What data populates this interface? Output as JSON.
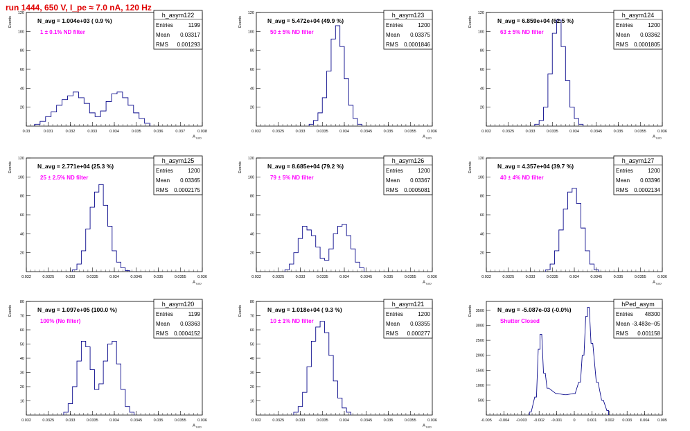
{
  "run_title": "run 1444,   650 V, I_pe ≈ 7.0 nA, 120 Hz",
  "colors": {
    "hist": "#0a0a8c",
    "filter_text": "#ff00ff",
    "title_text": "#e00000"
  },
  "chart_data": [
    {
      "type": "bar",
      "title": "h_asym122",
      "n_avg_label": "N_avg = 1.004e+03 ( 0.9 %)",
      "filter_label": "1 ± 0.1% ND filter",
      "stats": {
        "entries": "1199",
        "mean": "0.03317",
        "rms": "0.001293"
      },
      "ylabel": "Events",
      "xlabel": "A_LED",
      "xlim": [
        0.03,
        0.038
      ],
      "ylim": [
        0,
        120
      ],
      "xticks": [
        "0.03",
        "0.031",
        "0.032",
        "0.033",
        "0.034",
        "0.035",
        "0.036",
        "0.037",
        "0.038"
      ],
      "yticks": [
        "20",
        "40",
        "60",
        "80",
        "100",
        "120"
      ],
      "bins": [
        [
          0.0305,
          2
        ],
        [
          0.03075,
          5
        ],
        [
          0.031,
          10
        ],
        [
          0.03125,
          15
        ],
        [
          0.0315,
          22
        ],
        [
          0.03175,
          28
        ],
        [
          0.032,
          32
        ],
        [
          0.03225,
          36
        ],
        [
          0.0325,
          30
        ],
        [
          0.03275,
          24
        ],
        [
          0.033,
          14
        ],
        [
          0.03325,
          10
        ],
        [
          0.0335,
          16
        ],
        [
          0.03375,
          26
        ],
        [
          0.034,
          34
        ],
        [
          0.03425,
          36
        ],
        [
          0.0345,
          30
        ],
        [
          0.03475,
          22
        ],
        [
          0.035,
          14
        ],
        [
          0.03525,
          8
        ],
        [
          0.0355,
          3
        ]
      ]
    },
    {
      "type": "bar",
      "title": "h_asym123",
      "n_avg_label": "N_avg = 5.472e+04 (49.9 %)",
      "filter_label": "50 ± 5% ND filter",
      "stats": {
        "entries": "1200",
        "mean": "0.03375",
        "rms": "0.0001846"
      },
      "ylabel": "Events",
      "xlabel": "A_LED",
      "xlim": [
        0.032,
        0.036
      ],
      "ylim": [
        0,
        120
      ],
      "xticks": [
        "0.032",
        "0.0325",
        "0.033",
        "0.0335",
        "0.034",
        "0.0345",
        "0.035",
        "0.0355",
        "0.036"
      ],
      "yticks": [
        "20",
        "40",
        "60",
        "80",
        "100",
        "120"
      ],
      "bins": [
        [
          0.03325,
          2
        ],
        [
          0.03335,
          6
        ],
        [
          0.03345,
          14
        ],
        [
          0.03355,
          30
        ],
        [
          0.03365,
          58
        ],
        [
          0.03375,
          92
        ],
        [
          0.03385,
          106
        ],
        [
          0.03395,
          84
        ],
        [
          0.03405,
          50
        ],
        [
          0.03415,
          22
        ],
        [
          0.03425,
          8
        ],
        [
          0.03435,
          2
        ]
      ]
    },
    {
      "type": "bar",
      "title": "h_asym124",
      "n_avg_label": "N_avg = 6.859e+04 (62.5 %)",
      "filter_label": "63 ± 5% ND filter",
      "stats": {
        "entries": "1200",
        "mean": "0.03362",
        "rms": "0.0001805"
      },
      "ylabel": "Events",
      "xlabel": "A_LED",
      "xlim": [
        0.032,
        0.036
      ],
      "ylim": [
        0,
        120
      ],
      "xticks": [
        "0.032",
        "0.0325",
        "0.033",
        "0.0335",
        "0.034",
        "0.0345",
        "0.035",
        "0.0355",
        "0.036"
      ],
      "yticks": [
        "20",
        "40",
        "60",
        "80",
        "100",
        "120"
      ],
      "bins": [
        [
          0.03315,
          2
        ],
        [
          0.03325,
          6
        ],
        [
          0.03335,
          20
        ],
        [
          0.03345,
          55
        ],
        [
          0.03355,
          98
        ],
        [
          0.03365,
          112
        ],
        [
          0.03375,
          84
        ],
        [
          0.03385,
          48
        ],
        [
          0.03395,
          20
        ],
        [
          0.03405,
          8
        ],
        [
          0.03415,
          2
        ]
      ]
    },
    {
      "type": "bar",
      "title": "h_asym125",
      "n_avg_label": "N_avg = 2.771e+04 (25.3 %)",
      "filter_label": "25 ± 2.5% ND filter",
      "stats": {
        "entries": "1200",
        "mean": "0.03365",
        "rms": "0.0002175"
      },
      "ylabel": "Events",
      "xlabel": "A_LED",
      "xlim": [
        0.032,
        0.036
      ],
      "ylim": [
        0,
        120
      ],
      "xticks": [
        "0.032",
        "0.0325",
        "0.033",
        "0.0335",
        "0.034",
        "0.0345",
        "0.035",
        "0.0355",
        "0.036"
      ],
      "yticks": [
        "20",
        "40",
        "60",
        "80",
        "100",
        "120"
      ],
      "bins": [
        [
          0.0331,
          2
        ],
        [
          0.0332,
          8
        ],
        [
          0.0333,
          22
        ],
        [
          0.0334,
          45
        ],
        [
          0.0335,
          68
        ],
        [
          0.0336,
          84
        ],
        [
          0.0337,
          92
        ],
        [
          0.0338,
          70
        ],
        [
          0.0339,
          48
        ],
        [
          0.034,
          22
        ],
        [
          0.0341,
          10
        ],
        [
          0.0342,
          4
        ],
        [
          0.0343,
          1
        ]
      ]
    },
    {
      "type": "bar",
      "title": "h_asym126",
      "n_avg_label": "N_avg = 8.685e+04 (79.2 %)",
      "filter_label": "79 ± 5% ND filter",
      "stats": {
        "entries": "1200",
        "mean": "0.03367",
        "rms": "0.0005081"
      },
      "ylabel": "Events",
      "xlabel": "A_LED",
      "xlim": [
        0.032,
        0.036
      ],
      "ylim": [
        0,
        120
      ],
      "xticks": [
        "0.032",
        "0.0325",
        "0.033",
        "0.0335",
        "0.034",
        "0.0345",
        "0.035",
        "0.0355",
        "0.036"
      ],
      "yticks": [
        "20",
        "40",
        "60",
        "80",
        "100",
        "120"
      ],
      "bins": [
        [
          0.0327,
          2
        ],
        [
          0.0328,
          8
        ],
        [
          0.0329,
          20
        ],
        [
          0.033,
          35
        ],
        [
          0.0331,
          48
        ],
        [
          0.0332,
          44
        ],
        [
          0.0333,
          38
        ],
        [
          0.0334,
          26
        ],
        [
          0.0335,
          14
        ],
        [
          0.0336,
          12
        ],
        [
          0.0337,
          24
        ],
        [
          0.0338,
          40
        ],
        [
          0.0339,
          48
        ],
        [
          0.034,
          50
        ],
        [
          0.0341,
          38
        ],
        [
          0.0342,
          24
        ],
        [
          0.0343,
          10
        ],
        [
          0.0344,
          4
        ]
      ]
    },
    {
      "type": "bar",
      "title": "h_asym127",
      "n_avg_label": "N_avg = 4.357e+04 (39.7 %)",
      "filter_label": "40 ± 4% ND filter",
      "stats": {
        "entries": "1200",
        "mean": "0.03396",
        "rms": "0.0002134"
      },
      "ylabel": "Events",
      "xlabel": "A_LED",
      "xlim": [
        0.032,
        0.036
      ],
      "ylim": [
        0,
        120
      ],
      "xticks": [
        "0.032",
        "0.0325",
        "0.033",
        "0.0335",
        "0.034",
        "0.0345",
        "0.035",
        "0.0355",
        "0.036"
      ],
      "yticks": [
        "20",
        "40",
        "60",
        "80",
        "100",
        "120"
      ],
      "bins": [
        [
          0.0334,
          2
        ],
        [
          0.0335,
          8
        ],
        [
          0.0336,
          22
        ],
        [
          0.0337,
          44
        ],
        [
          0.0338,
          66
        ],
        [
          0.0339,
          84
        ],
        [
          0.034,
          88
        ],
        [
          0.0341,
          72
        ],
        [
          0.0342,
          46
        ],
        [
          0.0343,
          22
        ],
        [
          0.0344,
          8
        ],
        [
          0.0345,
          2
        ]
      ]
    },
    {
      "type": "bar",
      "title": "h_asym120",
      "n_avg_label": "N_avg = 1.097e+05 (100.0 %)",
      "filter_label": "100% (No filter)",
      "stats": {
        "entries": "1199",
        "mean": "0.03363",
        "rms": "0.0004152"
      },
      "ylabel": "Events",
      "xlabel": "A_LED",
      "xlim": [
        0.032,
        0.036
      ],
      "ylim": [
        0,
        80
      ],
      "xticks": [
        "0.032",
        "0.0325",
        "0.033",
        "0.0335",
        "0.034",
        "0.0345",
        "0.035",
        "0.0355",
        "0.036"
      ],
      "yticks": [
        "10",
        "20",
        "30",
        "40",
        "50",
        "60",
        "70",
        "80"
      ],
      "bins": [
        [
          0.0329,
          2
        ],
        [
          0.033,
          8
        ],
        [
          0.0331,
          20
        ],
        [
          0.0332,
          38
        ],
        [
          0.0333,
          52
        ],
        [
          0.0334,
          48
        ],
        [
          0.0335,
          32
        ],
        [
          0.0336,
          18
        ],
        [
          0.0337,
          22
        ],
        [
          0.0338,
          38
        ],
        [
          0.0339,
          50
        ],
        [
          0.034,
          52
        ],
        [
          0.0341,
          36
        ],
        [
          0.0342,
          18
        ],
        [
          0.0343,
          6
        ],
        [
          0.0344,
          2
        ]
      ]
    },
    {
      "type": "bar",
      "title": "h_asym121",
      "n_avg_label": "N_avg = 1.018e+04 ( 9.3 %)",
      "filter_label": "10 ± 1% ND filter",
      "stats": {
        "entries": "1200",
        "mean": "0.03355",
        "rms": "0.000277"
      },
      "ylabel": "Events",
      "xlabel": "A_LED",
      "xlim": [
        0.032,
        0.036
      ],
      "ylim": [
        0,
        80
      ],
      "xticks": [
        "0.032",
        "0.0325",
        "0.033",
        "0.0335",
        "0.034",
        "0.0345",
        "0.035",
        "0.0355",
        "0.036"
      ],
      "yticks": [
        "10",
        "20",
        "30",
        "40",
        "50",
        "60",
        "70",
        "80"
      ],
      "bins": [
        [
          0.0329,
          2
        ],
        [
          0.033,
          6
        ],
        [
          0.0331,
          16
        ],
        [
          0.0332,
          34
        ],
        [
          0.0333,
          52
        ],
        [
          0.0334,
          62
        ],
        [
          0.0335,
          66
        ],
        [
          0.0336,
          58
        ],
        [
          0.0337,
          42
        ],
        [
          0.0338,
          24
        ],
        [
          0.0339,
          12
        ],
        [
          0.034,
          5
        ],
        [
          0.0341,
          2
        ]
      ]
    },
    {
      "type": "bar",
      "title": "hPed_asym",
      "n_avg_label": "N_avg = -5.087e-03 (-0.0%)",
      "filter_label": "Shutter Closed",
      "stats": {
        "entries": "48300",
        "mean": "-3.483e−05",
        "rms": "0.001158"
      },
      "ylabel": "Events",
      "xlabel": "",
      "xlim": [
        -0.005,
        0.005
      ],
      "ylim": [
        0,
        3800
      ],
      "xticks": [
        "-0.005",
        "-0.004",
        "-0.003",
        "-0.002",
        "-0.001",
        "0",
        "0.001",
        "0.002",
        "0.003",
        "0.004",
        "0.005"
      ],
      "yticks": [
        "500",
        "1000",
        "1500",
        "2000",
        "2500",
        "3000",
        "3500"
      ],
      "bins": [
        [
          -0.0025,
          100
        ],
        [
          -0.0022,
          600
        ],
        [
          -0.002,
          2200
        ],
        [
          -0.0019,
          2700
        ],
        [
          -0.0017,
          1400
        ],
        [
          -0.0015,
          900
        ],
        [
          -0.001,
          720
        ],
        [
          -0.0005,
          680
        ],
        [
          0.0,
          720
        ],
        [
          0.0003,
          1100
        ],
        [
          0.0005,
          2000
        ],
        [
          0.0007,
          3300
        ],
        [
          0.0008,
          3600
        ],
        [
          0.001,
          2400
        ],
        [
          0.0013,
          1100
        ],
        [
          0.0016,
          500
        ],
        [
          0.0019,
          150
        ]
      ]
    }
  ]
}
